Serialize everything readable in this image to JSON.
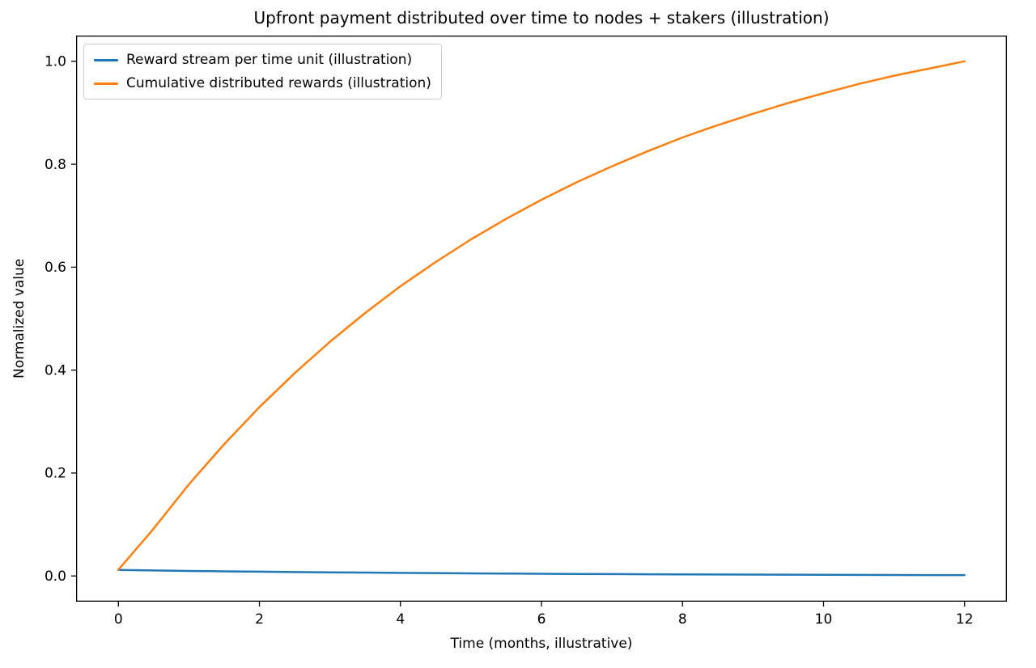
{
  "chart_data": {
    "type": "line",
    "title": "Upfront payment distributed over time to nodes + stakers (illustration)",
    "xlabel": "Time (months, illustrative)",
    "ylabel": "Normalized value",
    "xlim": [
      -0.6,
      12.6
    ],
    "ylim": [
      -0.05,
      1.05
    ],
    "xticks": [
      0,
      2,
      4,
      6,
      8,
      10,
      12
    ],
    "xtick_labels": [
      "0",
      "2",
      "4",
      "6",
      "8",
      "10",
      "12"
    ],
    "yticks": [
      0.0,
      0.2,
      0.4,
      0.6,
      0.8,
      1.0
    ],
    "ytick_labels": [
      "0.0",
      "0.2",
      "0.4",
      "0.6",
      "0.8",
      "1.0"
    ],
    "grid": false,
    "legend_position": "upper left",
    "frame_color": "#000000",
    "x": [
      0,
      0.5,
      1,
      1.5,
      2,
      2.5,
      3,
      3.5,
      4,
      4.5,
      5,
      5.5,
      6,
      6.5,
      7,
      7.5,
      8,
      8.5,
      9,
      9.5,
      10,
      10.5,
      11,
      11.5,
      12
    ],
    "series": [
      {
        "name": "Reward stream per time unit (illustration)",
        "color": "#1f77b4",
        "values": [
          0.0116,
          0.0107,
          0.0098,
          0.009,
          0.0083,
          0.0076,
          0.007,
          0.0065,
          0.006,
          0.0055,
          0.005,
          0.0046,
          0.0043,
          0.0039,
          0.0036,
          0.0033,
          0.0031,
          0.0028,
          0.0026,
          0.0024,
          0.0022,
          0.002,
          0.0019,
          0.0017,
          0.0016
        ]
      },
      {
        "name": "Cumulative distributed rewards (illustration)",
        "color": "#ff7f0e",
        "values": [
          0.012,
          0.092,
          0.178,
          0.256,
          0.328,
          0.394,
          0.455,
          0.511,
          0.563,
          0.61,
          0.654,
          0.694,
          0.731,
          0.765,
          0.796,
          0.825,
          0.852,
          0.876,
          0.898,
          0.919,
          0.938,
          0.956,
          0.972,
          0.986,
          1.0
        ]
      }
    ]
  }
}
